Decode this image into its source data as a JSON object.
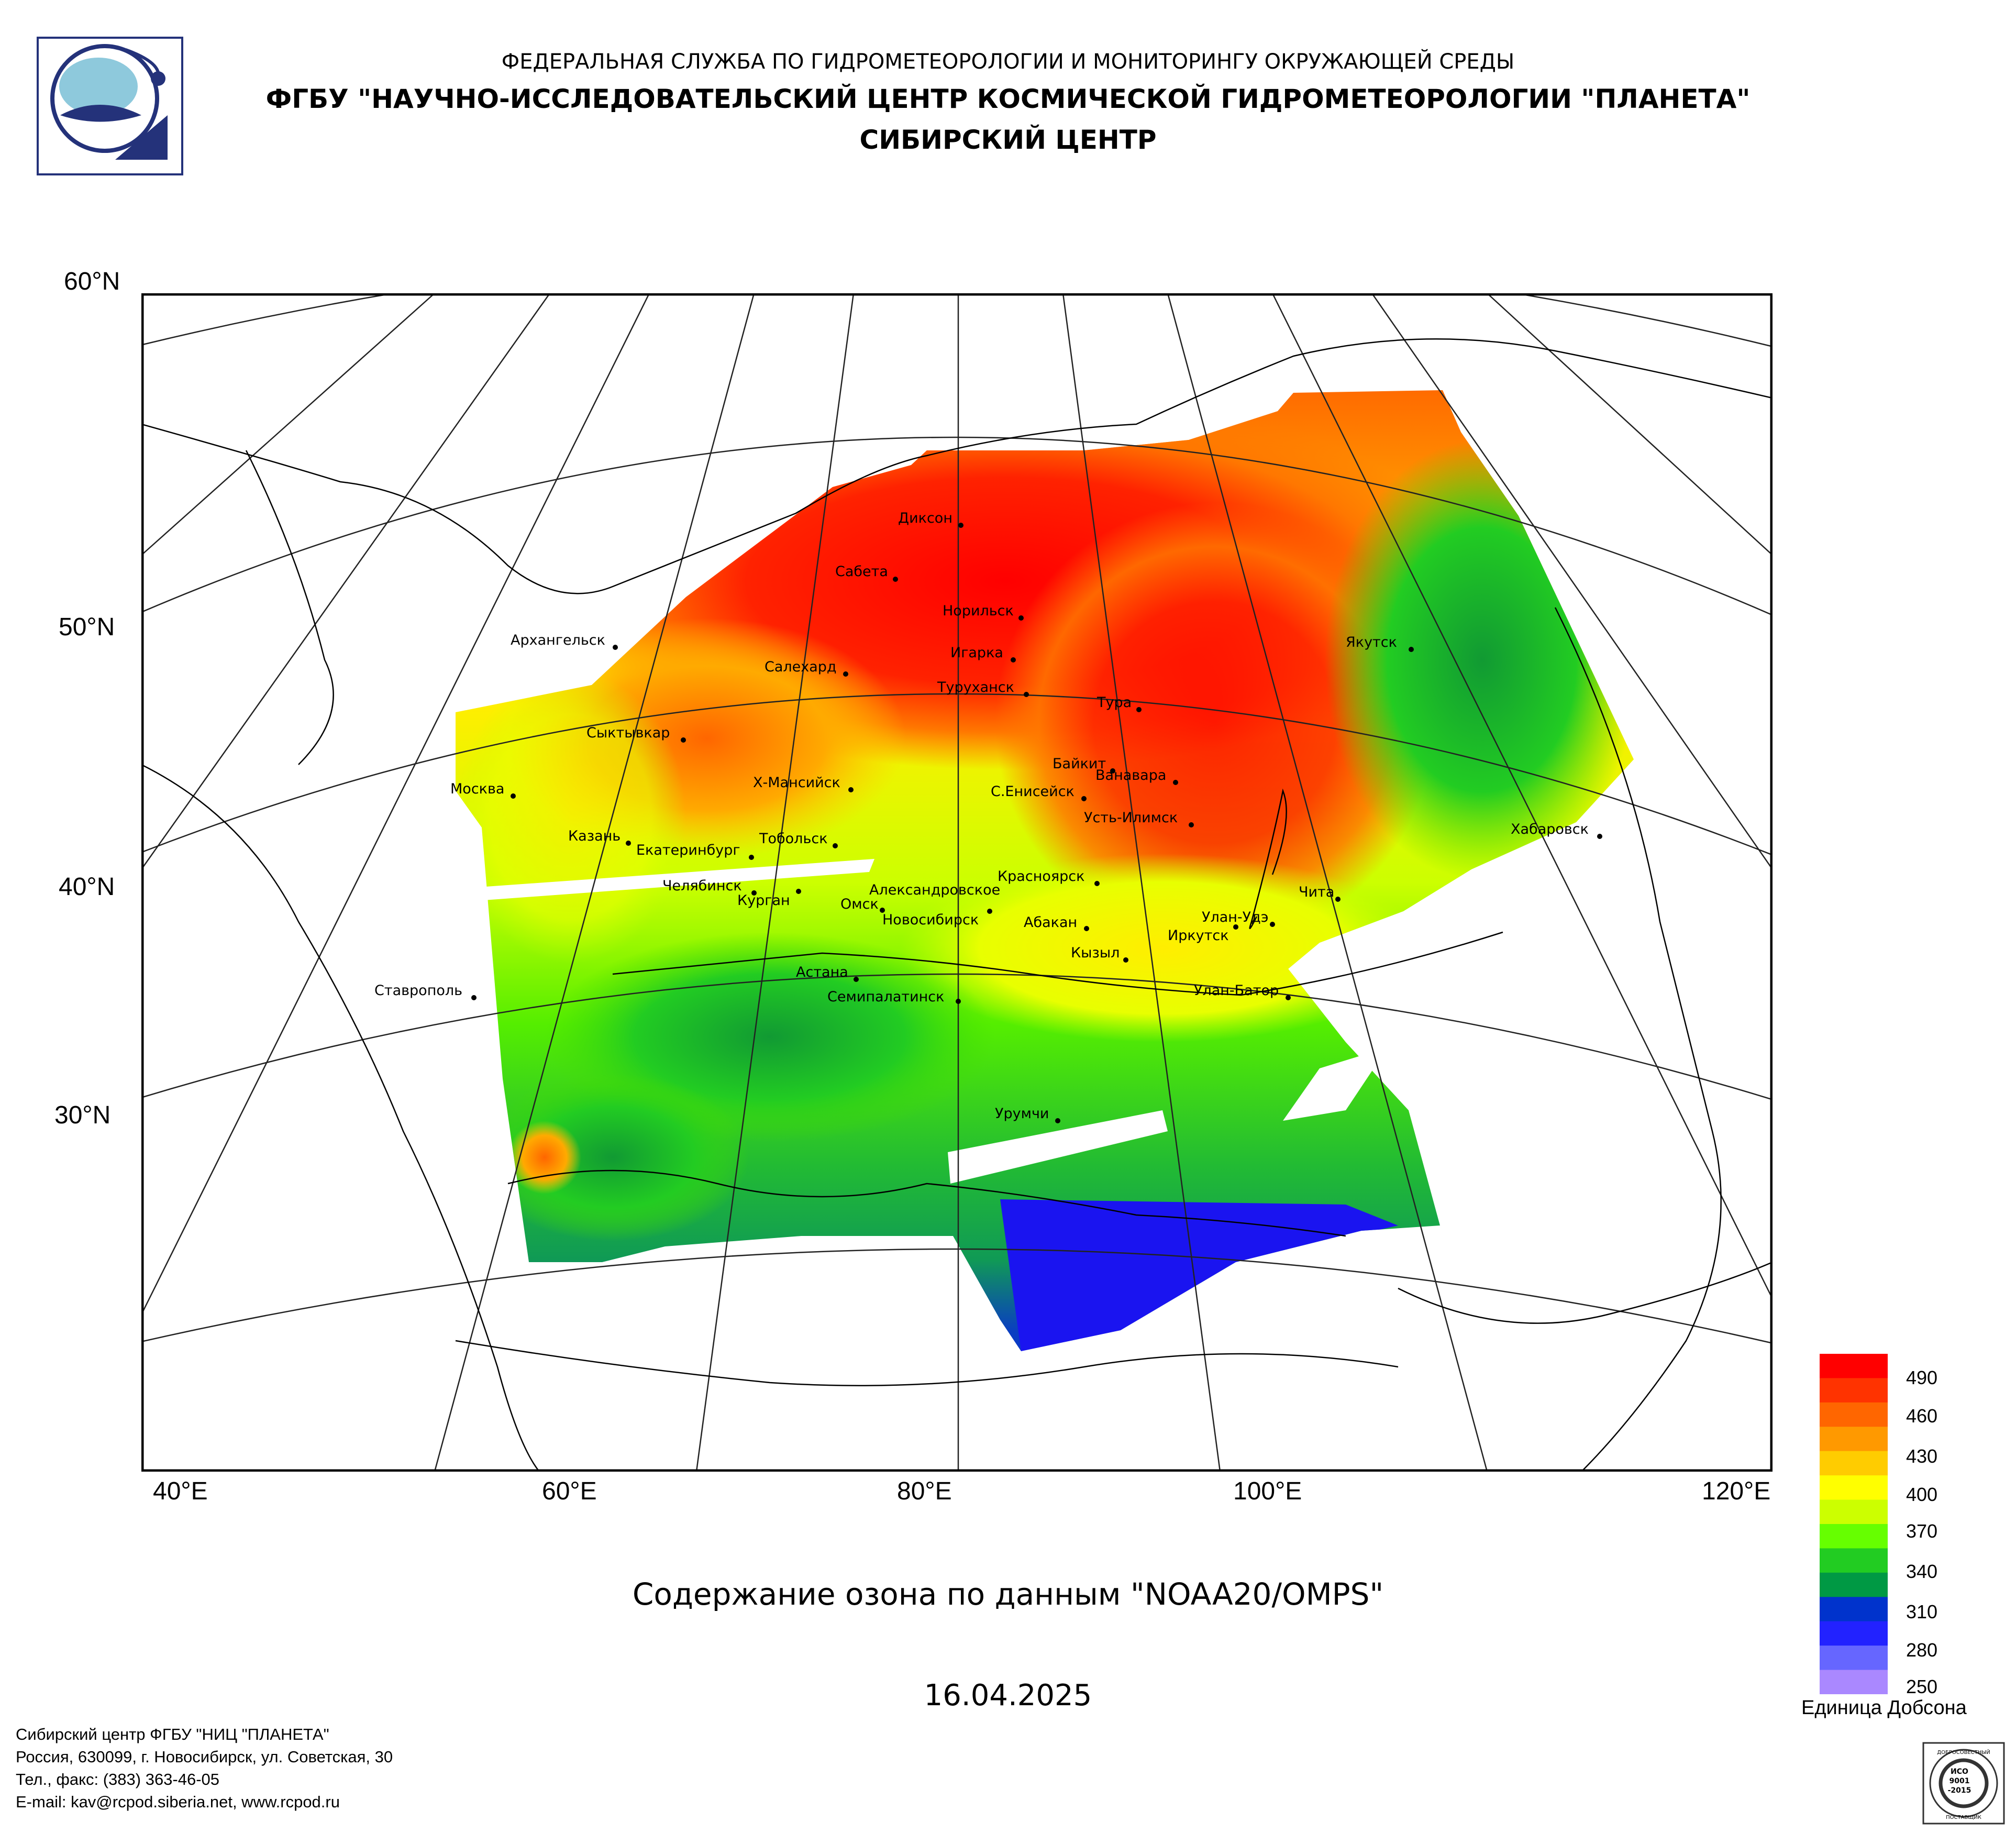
{
  "header": {
    "line1": "ФЕДЕРАЛЬНАЯ СЛУЖБА ПО ГИДРОМЕТЕОРОЛОГИИ И МОНИТОРИНГУ ОКРУЖАЮЩЕЙ СРЕДЫ",
    "line2": "ФГБУ \"НАУЧНО-ИССЛЕДОВАТЕЛЬСКИЙ ЦЕНТР КОСМИЧЕСКОЙ ГИДРОМЕТЕОРОЛОГИИ \"ПЛАНЕТА\"",
    "line3": "СИБИРСКИЙ ЦЕНТР"
  },
  "map": {
    "title": "Содержание озона по данным \"NOAA20/OMPS\"",
    "date": "16.04.2025",
    "lat_labels": [
      "60°N",
      "50°N",
      "40°N",
      "30°N"
    ],
    "lon_labels": [
      "40°E",
      "60°E",
      "80°E",
      "100°E",
      "120°E"
    ],
    "cities": [
      "Диксон",
      "Сабета",
      "Норильск",
      "Игарка",
      "Салехард",
      "Туруханск",
      "Тура",
      "Якутск",
      "Архангельск",
      "Сыктывкар",
      "Байкит",
      "Ванавара",
      "Х-Мансийск",
      "С.Енисейск",
      "Усть-Илимск",
      "Москва",
      "Казань",
      "Тобольск",
      "Екатеринбург",
      "Хабаровск",
      "Красноярск",
      "Челябинск",
      "Курган",
      "Александровское",
      "Омск",
      "Новосибирск",
      "Абакан",
      "Улан-Удэ",
      "Чита",
      "Иркутск",
      "Кызыл",
      "Астана",
      "Ставрополь",
      "Семипалатинск",
      "Улан-Батор",
      "Урумчи"
    ]
  },
  "legend": {
    "unit": "Единица Добсона",
    "ticks": [
      "490",
      "460",
      "430",
      "400",
      "370",
      "340",
      "310",
      "280",
      "250"
    ],
    "colors_top_to_bottom": [
      "#ff0000",
      "#ff3300",
      "#ff6600",
      "#ff9900",
      "#ffcc00",
      "#ffff00",
      "#ccff00",
      "#66ff00",
      "#22cc22",
      "#009944",
      "#0033cc",
      "#2222ff",
      "#6666ff",
      "#aa88ff"
    ]
  },
  "footer": {
    "line1": "Сибирский центр ФГБУ \"НИЦ \"ПЛАНЕТА\"",
    "line2": "Россия, 630099, г. Новосибирск, ул. Советская, 30",
    "line3": "Тел., факс: (383) 363-46-05",
    "line4": "E-mail: kav@rcpod.siberia.net, www.rcpod.ru"
  },
  "stamp": {
    "top": "ДОБРОСОВЕСТНЫЙ",
    "mid1": "ИСО",
    "mid2": "9001",
    "mid3": "-2015",
    "bottom": "ПОСТАВЩИК"
  },
  "colors": {
    "high": "#ff0000",
    "mid": "#ffff00",
    "low_green": "#33cc00",
    "min_blue": "#1010ff"
  }
}
